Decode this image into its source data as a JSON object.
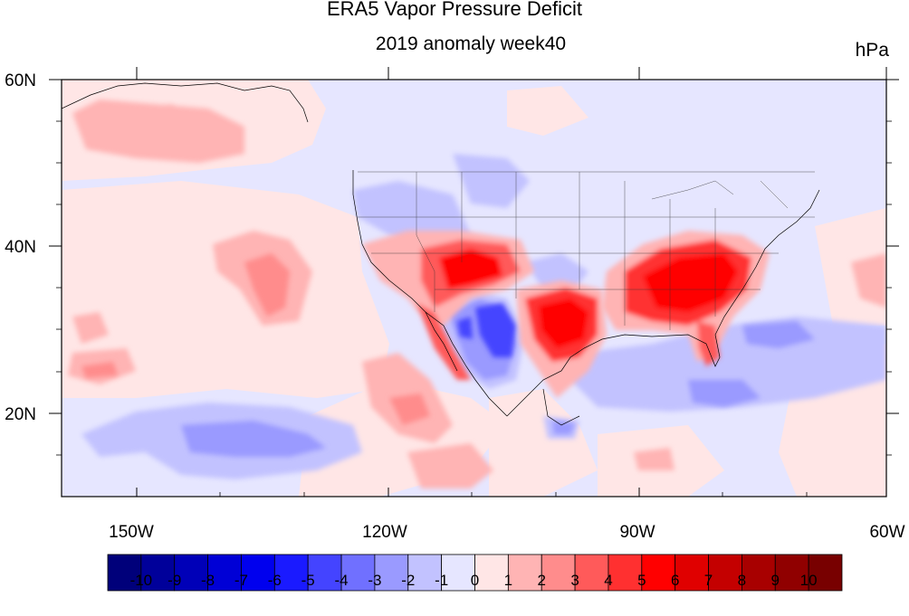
{
  "title": "ERA5 Vapor Pressure Deficit",
  "subtitle": "2019 anomaly week40",
  "units": "hPa",
  "axes": {
    "lat_labels": [
      "60N",
      "40N",
      "20N"
    ],
    "lon_labels": [
      "150W",
      "120W",
      "90W",
      "60W"
    ]
  },
  "colorbar": {
    "labels": [
      "-10",
      "-9",
      "-8",
      "-7",
      "-6",
      "-5",
      "-4",
      "-3",
      "-2",
      "-1",
      "0",
      "1",
      "2",
      "3",
      "4",
      "5",
      "6",
      "7",
      "8",
      "9",
      "10"
    ],
    "colors": [
      "#00007a",
      "#00009a",
      "#0000b8",
      "#0000d6",
      "#0000ee",
      "#1a1aff",
      "#4444ff",
      "#7070ff",
      "#9a9aff",
      "#c2c2ff",
      "#e6e6ff",
      "#ffe6e6",
      "#ffb4b4",
      "#ff8c8c",
      "#ff5a5a",
      "#ff3030",
      "#ff0000",
      "#e00000",
      "#c40000",
      "#a80000",
      "#900000",
      "#780000"
    ]
  },
  "colors": {
    "neutral_cool": "#e6e6ff",
    "neutral_warm": "#ffe6e6"
  }
}
